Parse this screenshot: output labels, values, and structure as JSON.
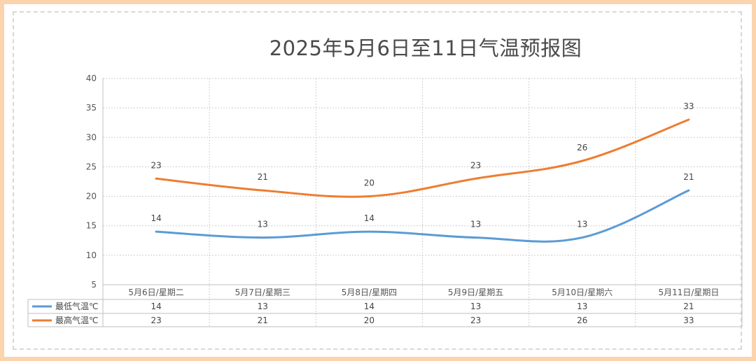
{
  "chart_data": {
    "type": "line",
    "title": "2025年5月6日至11日气温预报图",
    "categories": [
      "5月6日/星期二",
      "5月7日/星期三",
      "5月8日/星期四",
      "5月9日/星期五",
      "5月10日/星期六",
      "5月11日/星期日"
    ],
    "series": [
      {
        "name": "最低气温℃",
        "values": [
          14,
          13,
          14,
          13,
          13,
          21
        ],
        "color": "#5b9bd5"
      },
      {
        "name": "最高气温℃",
        "values": [
          23,
          21,
          20,
          23,
          26,
          33
        ],
        "color": "#ed7d31"
      }
    ],
    "yticks": [
      5,
      10,
      15,
      20,
      25,
      30,
      35,
      40
    ],
    "ylim": [
      5,
      40
    ],
    "grid": true,
    "smooth": true,
    "data_labels": true,
    "legend": "data-table-below"
  }
}
